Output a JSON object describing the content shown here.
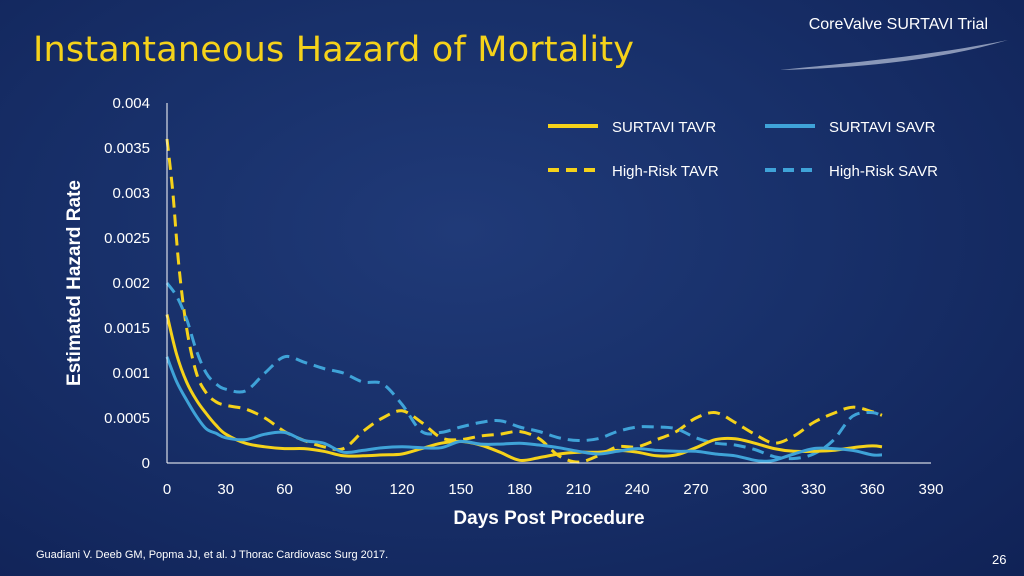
{
  "slide": {
    "title": "Instantaneous Hazard of Mortality",
    "brand": "CoreValve SURTAVI Trial",
    "footnote": "Guadiani V. Deeb GM, Popma JJ, et al. J Thorac Cardiovasc Surg 2017.",
    "page_number": "26"
  },
  "colors": {
    "tavr": "#f5d21a",
    "savr": "#3fa3d8",
    "title": "#f5d21a",
    "axis": "#ffffff"
  },
  "chart_data": {
    "type": "line",
    "title": "",
    "xlabel": "Days Post Procedure",
    "ylabel": "Estimated Hazard Rate",
    "xlim": [
      0,
      390
    ],
    "ylim": [
      0,
      0.004
    ],
    "x_ticks": [
      0,
      30,
      60,
      90,
      120,
      150,
      180,
      210,
      240,
      270,
      300,
      330,
      360,
      390
    ],
    "y_ticks": [
      0,
      0.0005,
      0.001,
      0.0015,
      0.002,
      0.0025,
      0.003,
      0.0035,
      0.004
    ],
    "y_tick_labels": [
      "0",
      "0.0005",
      "0.001",
      "0.0015",
      "0.002",
      "0.0025",
      "0.003",
      "0.0035",
      "0.004"
    ],
    "grid": false,
    "legend_position": "top-right",
    "series": [
      {
        "name": "SURTAVI TAVR",
        "style": "solid",
        "color_key": "tavr",
        "x": [
          0,
          5,
          10,
          15,
          20,
          25,
          30,
          40,
          50,
          60,
          70,
          80,
          90,
          100,
          110,
          120,
          130,
          140,
          150,
          160,
          170,
          180,
          190,
          200,
          210,
          220,
          230,
          240,
          250,
          260,
          270,
          280,
          290,
          300,
          310,
          320,
          330,
          340,
          350,
          360,
          365
        ],
        "y": [
          0.00165,
          0.0012,
          0.0009,
          0.0007,
          0.00055,
          0.00042,
          0.00032,
          0.00022,
          0.00018,
          0.00016,
          0.00016,
          0.00013,
          8e-05,
          8e-05,
          9e-05,
          0.0001,
          0.00016,
          0.00022,
          0.00024,
          0.0002,
          0.00012,
          3e-05,
          6e-05,
          0.0001,
          0.00012,
          0.00012,
          0.00014,
          0.00012,
          8e-05,
          9e-05,
          0.00017,
          0.00026,
          0.00027,
          0.00022,
          0.00016,
          0.00013,
          0.00013,
          0.00014,
          0.00017,
          0.00019,
          0.00018
        ]
      },
      {
        "name": "SURTAVI SAVR",
        "style": "solid",
        "color_key": "savr",
        "x": [
          0,
          5,
          10,
          15,
          20,
          25,
          30,
          40,
          50,
          60,
          70,
          80,
          90,
          100,
          110,
          120,
          130,
          140,
          150,
          160,
          170,
          180,
          190,
          200,
          210,
          220,
          230,
          240,
          250,
          260,
          270,
          280,
          290,
          300,
          305,
          310,
          320,
          330,
          340,
          350,
          360,
          365
        ],
        "y": [
          0.00118,
          0.0009,
          0.0007,
          0.00052,
          0.00038,
          0.00033,
          0.00028,
          0.00026,
          0.00032,
          0.00034,
          0.00025,
          0.00022,
          0.00012,
          0.00014,
          0.00017,
          0.00018,
          0.00017,
          0.00017,
          0.00024,
          0.00021,
          0.00021,
          0.00022,
          0.0002,
          0.00017,
          0.00013,
          0.0001,
          0.00013,
          0.00016,
          0.00014,
          0.00013,
          0.00013,
          0.0001,
          8e-05,
          3e-05,
          2e-05,
          3e-05,
          0.0001,
          0.00016,
          0.00016,
          0.00014,
          9e-05,
          9e-05
        ]
      },
      {
        "name": "High-Risk TAVR",
        "style": "dashed",
        "color_key": "tavr",
        "x": [
          0,
          3,
          6,
          10,
          15,
          20,
          25,
          30,
          40,
          50,
          60,
          70,
          80,
          90,
          100,
          110,
          120,
          130,
          140,
          150,
          160,
          170,
          180,
          190,
          200,
          210,
          220,
          230,
          240,
          250,
          260,
          270,
          280,
          290,
          300,
          310,
          320,
          330,
          340,
          350,
          360,
          365
        ],
        "y": [
          0.0036,
          0.003,
          0.0022,
          0.0015,
          0.001,
          0.00078,
          0.00068,
          0.00064,
          0.0006,
          0.0005,
          0.00035,
          0.00025,
          0.00018,
          0.00016,
          0.00035,
          0.0005,
          0.00058,
          0.00045,
          0.00028,
          0.00026,
          0.0003,
          0.00032,
          0.00035,
          0.00027,
          8e-05,
          1e-05,
          8e-05,
          0.00018,
          0.00018,
          0.00026,
          0.00035,
          0.0005,
          0.00056,
          0.00045,
          0.00032,
          0.00022,
          0.0003,
          0.00045,
          0.00055,
          0.00062,
          0.00057,
          0.00053
        ]
      },
      {
        "name": "High-Risk SAVR",
        "style": "dashed",
        "color_key": "savr",
        "x": [
          0,
          5,
          10,
          15,
          20,
          25,
          30,
          40,
          50,
          60,
          70,
          80,
          90,
          100,
          110,
          120,
          130,
          140,
          150,
          160,
          170,
          180,
          190,
          200,
          210,
          220,
          230,
          240,
          250,
          260,
          270,
          280,
          290,
          300,
          310,
          320,
          330,
          340,
          350,
          360,
          365
        ],
        "y": [
          0.002,
          0.00185,
          0.0016,
          0.00125,
          0.001,
          0.00088,
          0.00082,
          0.0008,
          0.001,
          0.00118,
          0.00112,
          0.00105,
          0.001,
          0.0009,
          0.00088,
          0.00065,
          0.00035,
          0.00034,
          0.0004,
          0.00045,
          0.00047,
          0.0004,
          0.00035,
          0.00028,
          0.00025,
          0.00027,
          0.00035,
          0.0004,
          0.0004,
          0.00038,
          0.00028,
          0.00022,
          0.0002,
          0.00015,
          7e-05,
          5e-05,
          0.0001,
          0.00025,
          0.00052,
          0.00056,
          0.00052
        ]
      }
    ]
  }
}
